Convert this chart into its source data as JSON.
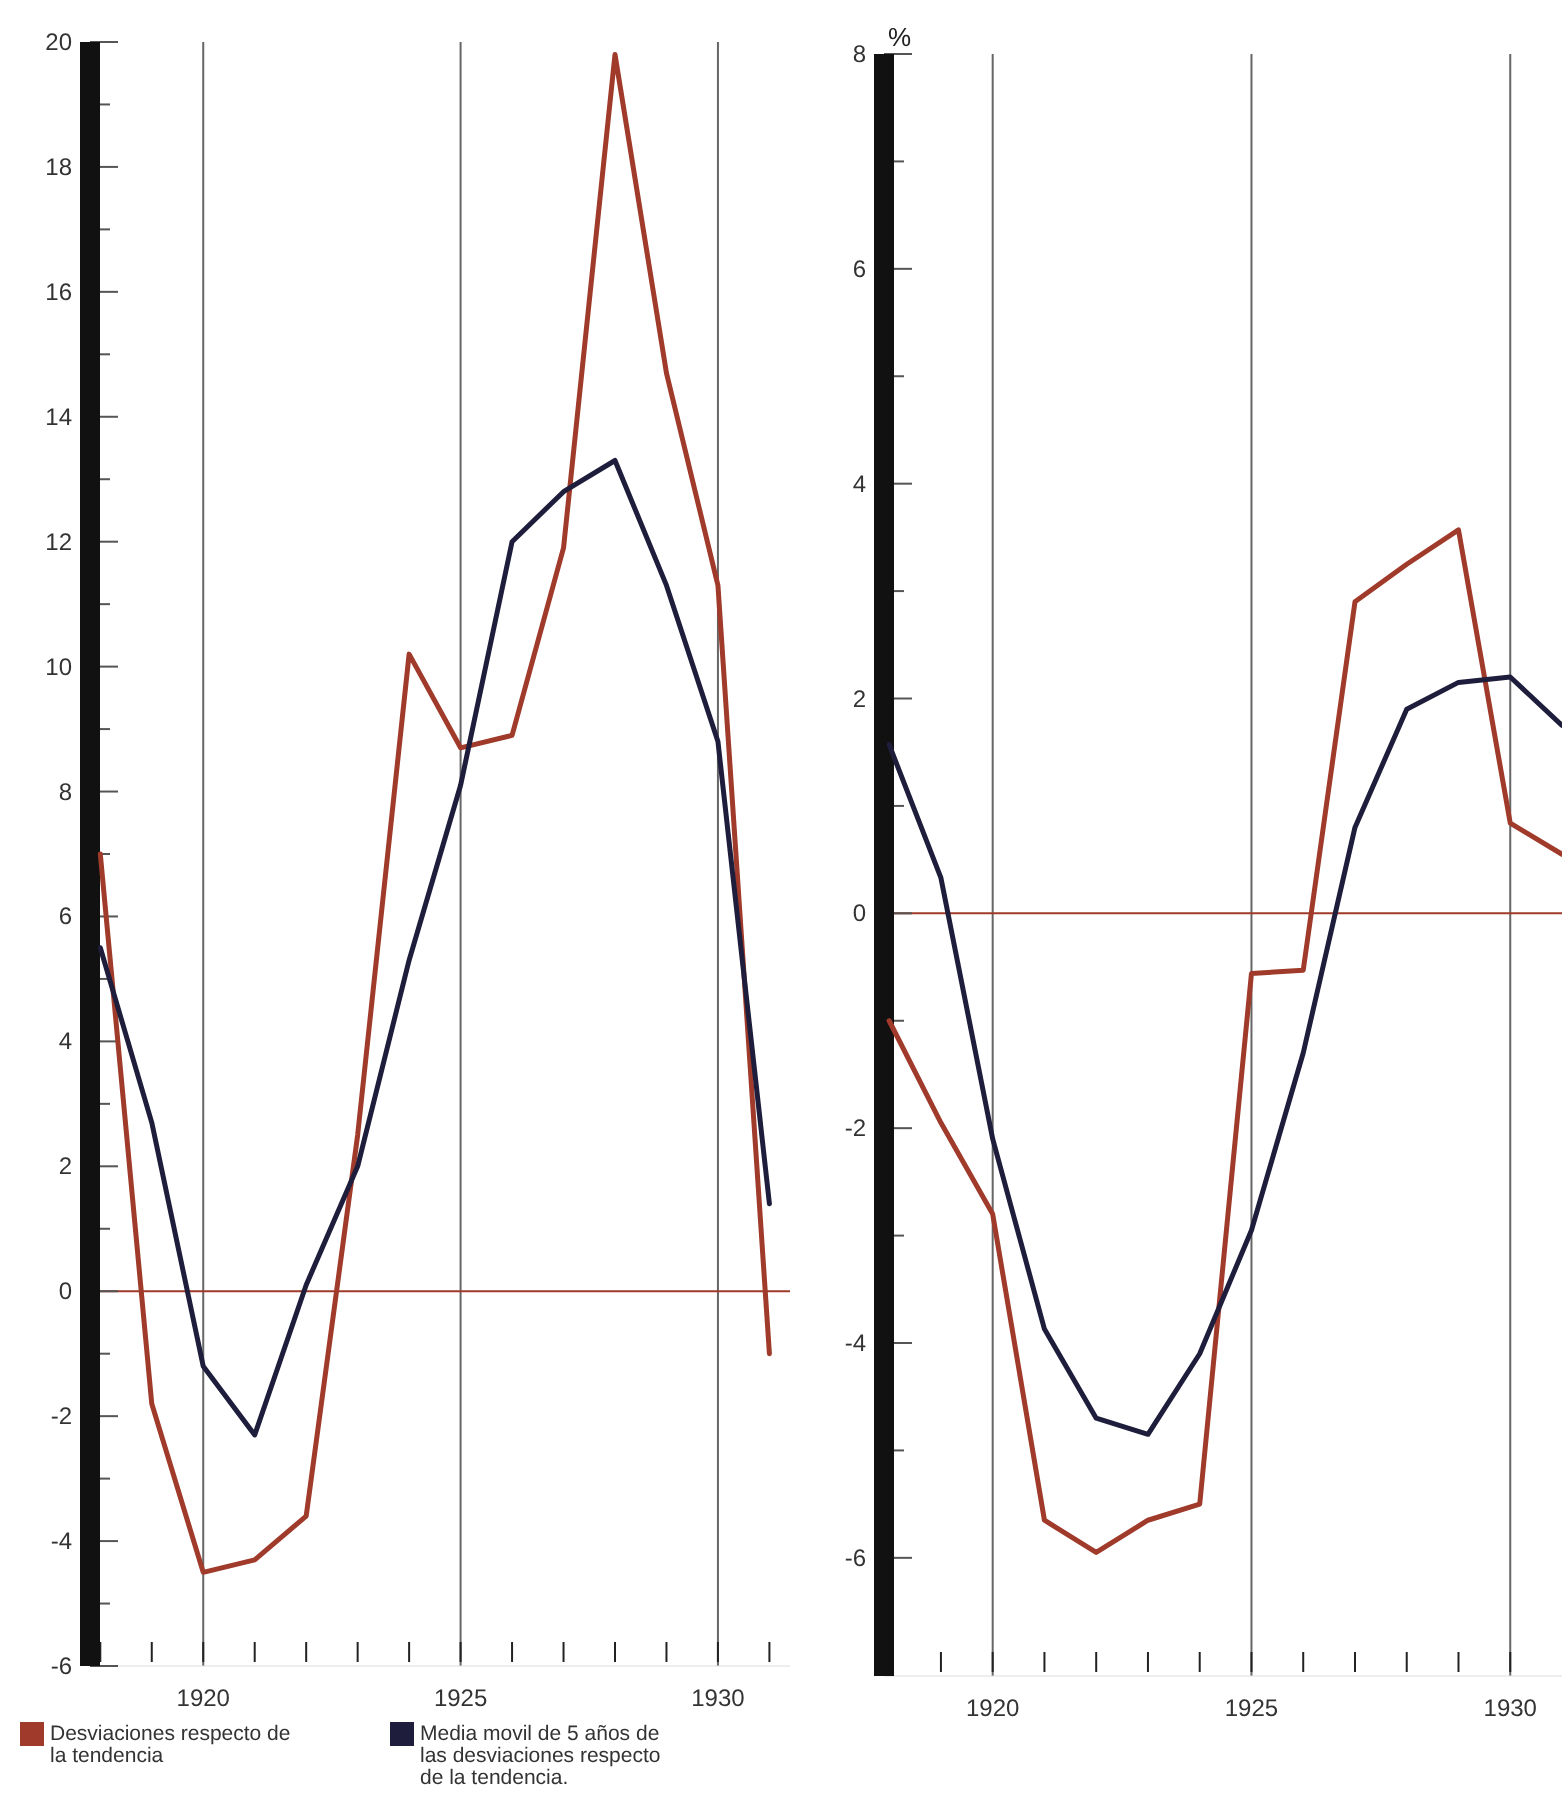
{
  "chart_data": [
    {
      "type": "line",
      "x": [
        1918,
        1919,
        1920,
        1921,
        1922,
        1923,
        1924,
        1925,
        1926,
        1927,
        1928,
        1929,
        1930,
        1931
      ],
      "series": [
        {
          "name": "Desviaciones respecto de la tendencia",
          "color": "#a03a2a",
          "values": [
            7.0,
            -1.8,
            -4.5,
            -4.3,
            -3.6,
            2.5,
            10.2,
            8.7,
            8.9,
            11.9,
            19.8,
            14.7,
            11.3,
            -1.0
          ]
        },
        {
          "name": "Media movil de 5 años de las desviaciones respecto de la tendencia.",
          "color": "#1e1e3c",
          "values": [
            5.5,
            2.7,
            -1.2,
            -2.3,
            0.1,
            2.0,
            5.3,
            8.1,
            12.0,
            12.8,
            13.3,
            11.3,
            8.8,
            1.4
          ]
        }
      ],
      "xlim": [
        1917.8,
        1931.4
      ],
      "ylim": [
        -6,
        20
      ],
      "xticks": [
        {
          "value": 1918,
          "label": null
        },
        {
          "value": 1919,
          "label": null
        },
        1920,
        {
          "value": 1921,
          "label": null
        },
        {
          "value": 1922,
          "label": null
        },
        {
          "value": 1923,
          "label": null
        },
        {
          "value": 1924,
          "label": null
        },
        1925,
        {
          "value": 1926,
          "label": null
        },
        {
          "value": 1927,
          "label": null
        },
        {
          "value": 1928,
          "label": null
        },
        {
          "value": 1929,
          "label": null
        },
        1930,
        {
          "value": 1931,
          "label": null
        }
      ],
      "yticks": [
        -6,
        {
          "value": -5,
          "label": null
        },
        -4,
        {
          "value": -3,
          "label": null
        },
        -2,
        {
          "value": -1,
          "label": null
        },
        0,
        {
          "value": 1,
          "label": null
        },
        2,
        {
          "value": 3,
          "label": null
        },
        4,
        {
          "value": 5,
          "label": null
        },
        6,
        {
          "value": 7,
          "label": null
        },
        8,
        {
          "value": 9,
          "label": null
        },
        10,
        {
          "value": 11,
          "label": null
        },
        12,
        {
          "value": 13,
          "label": null
        },
        14,
        {
          "value": 15,
          "label": null
        },
        16,
        {
          "value": 17,
          "label": null
        },
        18,
        {
          "value": 19,
          "label": null
        },
        20
      ],
      "grid": "x",
      "legend": "bottom",
      "marker": "none",
      "line_style": "solid",
      "ref_lines": [
        {
          "axis": "y",
          "value": 0,
          "color": "#a03a2a"
        }
      ]
    },
    {
      "type": "line",
      "x": [
        1918,
        1919,
        1920,
        1921,
        1922,
        1923,
        1924,
        1925,
        1926,
        1927,
        1928,
        1929,
        1930,
        1931
      ],
      "ylabel": "%",
      "series": [
        {
          "color": "#a03a2a",
          "values": [
            -1.0,
            -1.95,
            -2.8,
            -5.65,
            -5.95,
            -5.65,
            -5.5,
            -0.56,
            -0.53,
            2.9,
            3.25,
            3.57,
            0.84,
            0.55
          ]
        },
        {
          "color": "#1e1e3c",
          "values": [
            1.57,
            0.33,
            -2.1,
            -3.87,
            -4.7,
            -4.85,
            -4.1,
            -2.95,
            -1.3,
            0.8,
            1.9,
            2.15,
            2.2,
            1.75
          ]
        }
      ],
      "xlim": [
        1917.9,
        1931
      ],
      "ylim": [
        -7.1,
        8
      ],
      "xticks": [
        {
          "value": 1919,
          "label": null
        },
        1920,
        {
          "value": 1921,
          "label": null
        },
        {
          "value": 1922,
          "label": null
        },
        {
          "value": 1923,
          "label": null
        },
        {
          "value": 1924,
          "label": null
        },
        1925,
        {
          "value": 1926,
          "label": null
        },
        {
          "value": 1927,
          "label": null
        },
        {
          "value": 1928,
          "label": null
        },
        {
          "value": 1929,
          "label": null
        },
        1930
      ],
      "yticks": [
        -6,
        {
          "value": -5,
          "label": null
        },
        -4,
        {
          "value": -3,
          "label": null
        },
        -2,
        {
          "value": -1,
          "label": null
        },
        0,
        {
          "value": 1,
          "label": null
        },
        2,
        {
          "value": 3,
          "label": null
        },
        4,
        {
          "value": 5,
          "label": null
        },
        6,
        {
          "value": 7,
          "label": null
        },
        8
      ],
      "grid": "x",
      "legend": false,
      "marker": "none",
      "line_style": "solid",
      "ref_lines": [
        {
          "axis": "y",
          "value": 0,
          "color": "#a03a2a"
        }
      ]
    }
  ]
}
